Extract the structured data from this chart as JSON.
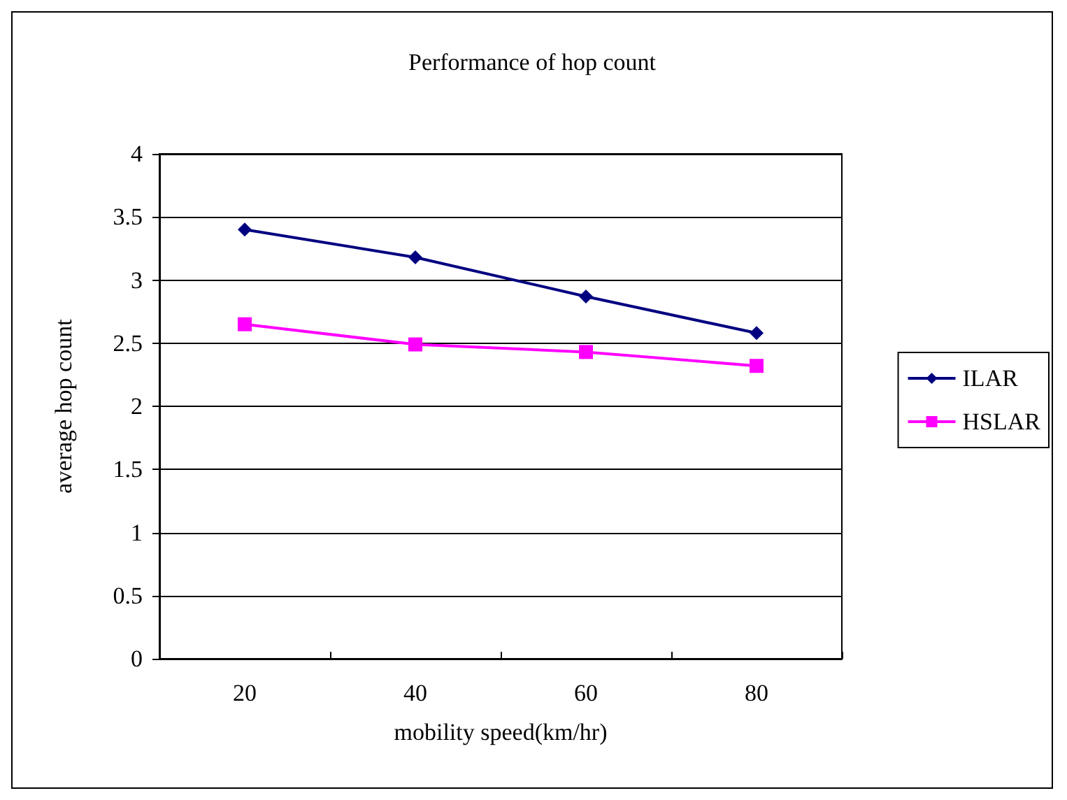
{
  "chart_data": {
    "type": "line",
    "title": "Performance of hop count",
    "xlabel": "mobility speed(km/hr)",
    "ylabel": "average hop count",
    "categories": [
      "20",
      "40",
      "60",
      "80"
    ],
    "series": [
      {
        "name": "ILAR",
        "color": "#000080",
        "marker": "diamond",
        "values": [
          3.4,
          3.18,
          2.87,
          2.58
        ]
      },
      {
        "name": "HSLAR",
        "color": "#ff00ff",
        "marker": "square",
        "values": [
          2.65,
          2.49,
          2.43,
          2.32
        ]
      }
    ],
    "ylim": [
      0,
      4
    ],
    "yticks": [
      0,
      0.5,
      1,
      1.5,
      2,
      2.5,
      3,
      3.5,
      4
    ],
    "grid": "y",
    "legend": "right"
  }
}
